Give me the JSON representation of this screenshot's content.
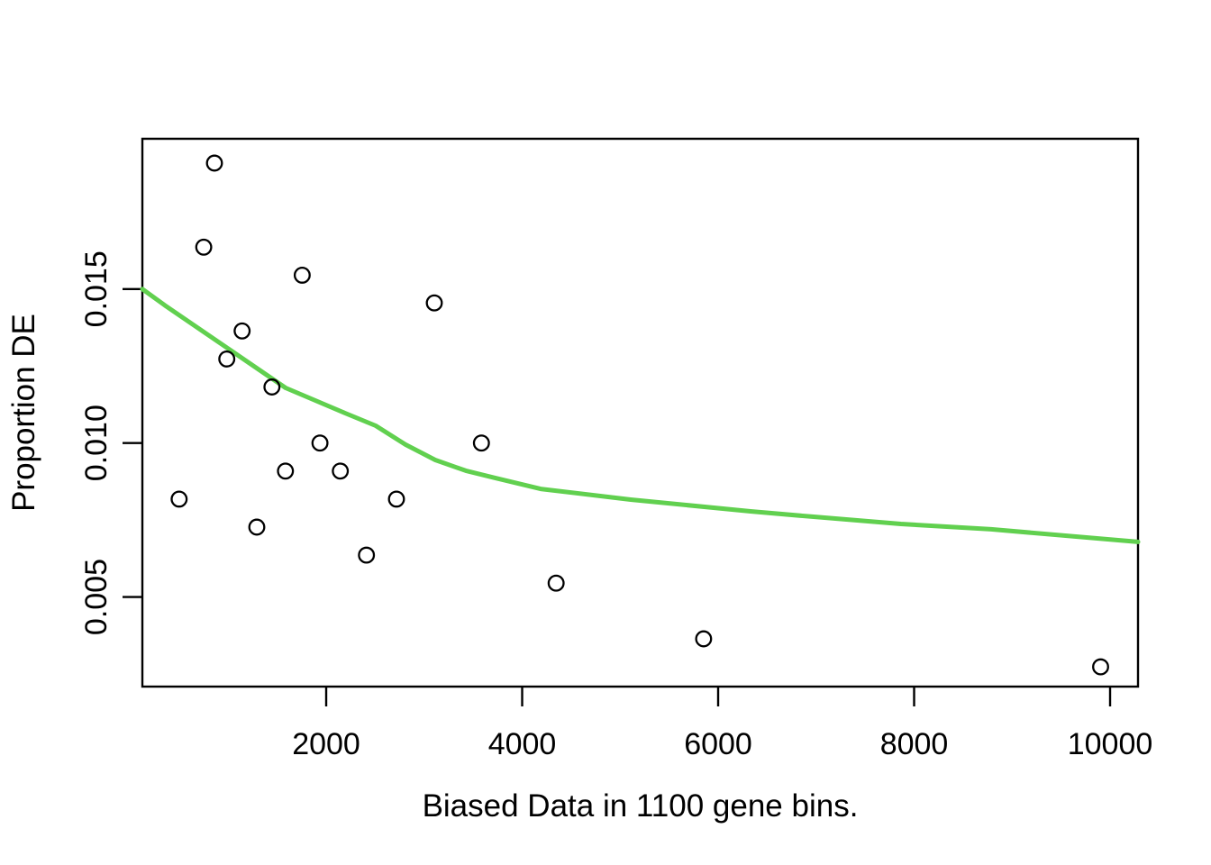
{
  "page": {
    "background": "#ffffff"
  },
  "chart_data": {
    "type": "scatter",
    "title": "",
    "xlabel": "Biased Data in 1100 gene bins.",
    "ylabel": "Proportion DE",
    "x_ticks": [
      2000,
      4000,
      6000,
      8000,
      10000
    ],
    "x_tick_labels": [
      "2000",
      "4000",
      "6000",
      "8000",
      "10000"
    ],
    "y_ticks": [
      0.005,
      0.01,
      0.015
    ],
    "y_tick_labels": [
      "0.005",
      "0.010",
      "0.015"
    ],
    "x_domain": [
      124,
      10285
    ],
    "y_domain": [
      0.00209,
      0.01988
    ],
    "grid": false,
    "legend": null,
    "point_style": {
      "shape": "open-circle",
      "color": "#000000"
    },
    "points": [
      {
        "x": 860,
        "y": 0.01909
      },
      {
        "x": 750,
        "y": 0.01636
      },
      {
        "x": 1755,
        "y": 0.01545
      },
      {
        "x": 3103,
        "y": 0.01455
      },
      {
        "x": 1142,
        "y": 0.01364
      },
      {
        "x": 986,
        "y": 0.01273
      },
      {
        "x": 1446,
        "y": 0.01182
      },
      {
        "x": 1936,
        "y": 0.01
      },
      {
        "x": 3584,
        "y": 0.01
      },
      {
        "x": 1584,
        "y": 0.00909
      },
      {
        "x": 2144,
        "y": 0.00909
      },
      {
        "x": 499,
        "y": 0.00818
      },
      {
        "x": 2717,
        "y": 0.00818
      },
      {
        "x": 1292,
        "y": 0.00727
      },
      {
        "x": 2411,
        "y": 0.00636
      },
      {
        "x": 4347,
        "y": 0.00545
      },
      {
        "x": 5852,
        "y": 0.00364
      },
      {
        "x": 9903,
        "y": 0.00273
      }
    ],
    "trend": {
      "name": "lowess-fit-line",
      "color": "#61D04F",
      "points": [
        [
          124,
          0.015
        ],
        [
          354,
          0.01447
        ],
        [
          970,
          0.01313
        ],
        [
          1586,
          0.01179
        ],
        [
          2193,
          0.01097
        ],
        [
          2506,
          0.01056
        ],
        [
          2809,
          0.00995
        ],
        [
          3113,
          0.00945
        ],
        [
          3425,
          0.0091
        ],
        [
          3729,
          0.00886
        ],
        [
          4188,
          0.00851
        ],
        [
          5108,
          0.00816
        ],
        [
          6331,
          0.00778
        ],
        [
          6947,
          0.00761
        ],
        [
          7866,
          0.00737
        ],
        [
          8786,
          0.0072
        ],
        [
          10285,
          0.00679
        ]
      ]
    },
    "axis_color": "#000000"
  }
}
